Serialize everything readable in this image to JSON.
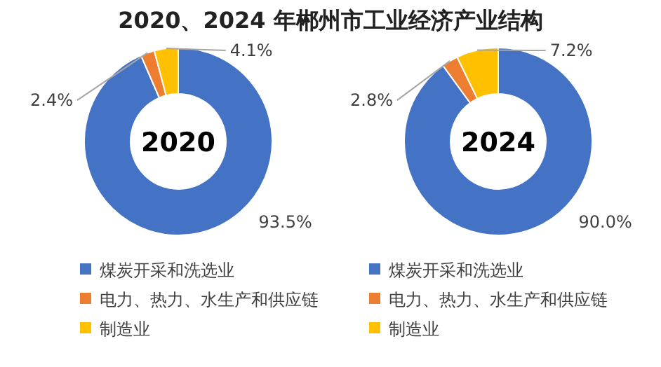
{
  "chart_data": [
    {
      "type": "donut",
      "title": "2020、2024 年郴州市工业经济产业结构",
      "annotations": [
        "2020"
      ],
      "categories": [
        "煤炭开采和洗选业",
        "电力、热力、水生产和供应链",
        "制造业"
      ],
      "values": [
        93.5,
        2.4,
        4.1
      ],
      "colors": [
        "#4472c4",
        "#ed7d31",
        "#ffc000"
      ],
      "value_labels": [
        "93.5%",
        "2.4%",
        "4.1%"
      ],
      "legend": "bottom"
    },
    {
      "type": "donut",
      "annotations": [
        "2024"
      ],
      "categories": [
        "煤炭开采和洗选业",
        "电力、热力、水生产和供应链",
        "制造业"
      ],
      "values": [
        90.0,
        2.8,
        7.2
      ],
      "colors": [
        "#4472c4",
        "#ed7d31",
        "#ffc000"
      ],
      "value_labels": [
        "90.0%",
        "2.8%",
        "7.2%"
      ],
      "legend": "bottom"
    }
  ]
}
